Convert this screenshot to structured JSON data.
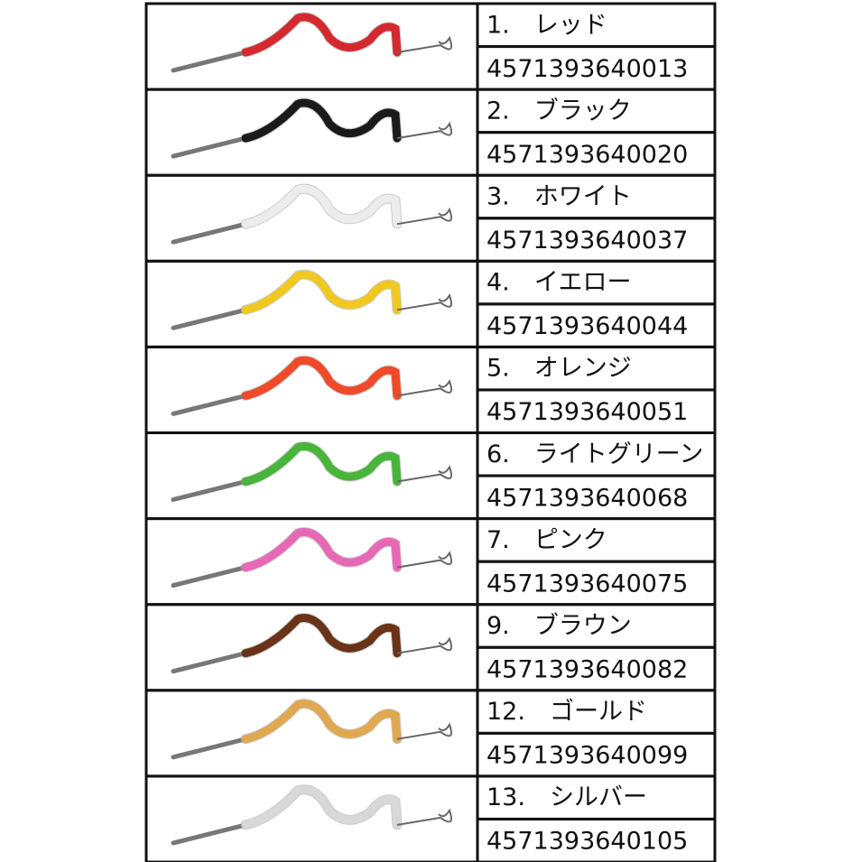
{
  "table": {
    "rows": [
      [
        "1.　レッド",
        "4571393640013"
      ],
      [
        "2.　ブラック",
        "4571393640020"
      ],
      [
        "3.　ホワイト",
        "4571393640037"
      ],
      [
        "4.　イエロー",
        "4571393640044"
      ],
      [
        "5.　オレンジ",
        "4571393640051"
      ],
      [
        "6.　ライトグリーン",
        "4571393640068"
      ],
      [
        "7.　ピンク",
        "4571393640075"
      ],
      [
        "9.　ブラウン",
        "4571393640082"
      ],
      [
        "12.　ゴールド",
        "4571393640099"
      ],
      [
        "13.　シルバー",
        "4571393640105"
      ]
    ]
  }
}
